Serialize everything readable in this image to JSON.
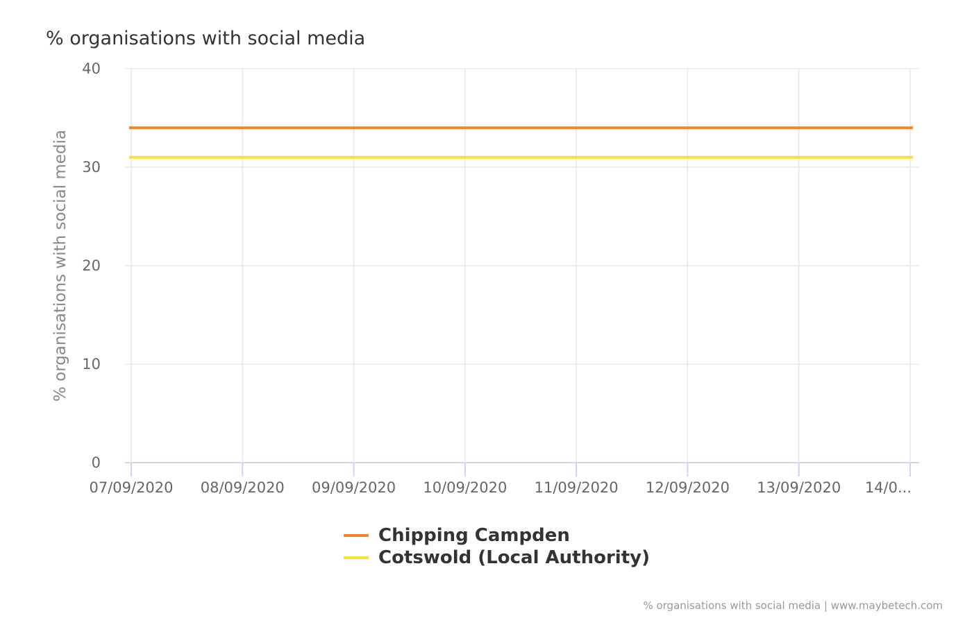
{
  "chart_data": {
    "type": "line",
    "title": "% organisations with social media",
    "ylabel": "% organisations with social media",
    "xlabel": "",
    "ylim": [
      0,
      40
    ],
    "y_ticks": [
      0,
      10,
      20,
      30,
      40
    ],
    "categories": [
      "07/09/2020",
      "08/09/2020",
      "09/09/2020",
      "10/09/2020",
      "11/09/2020",
      "12/09/2020",
      "13/09/2020",
      "14/0..."
    ],
    "series": [
      {
        "name": "Chipping Campden",
        "color": "#f0862a",
        "values": [
          34,
          34,
          34,
          34,
          34,
          34,
          34,
          34
        ]
      },
      {
        "name": "Cotswold (Local Authority)",
        "color": "#f7e03a",
        "values": [
          31,
          31,
          31,
          31,
          31,
          31,
          31,
          31
        ]
      }
    ],
    "grid": true,
    "legend_position": "bottom-center"
  },
  "credits": "% organisations with social media | www.maybetech.com"
}
